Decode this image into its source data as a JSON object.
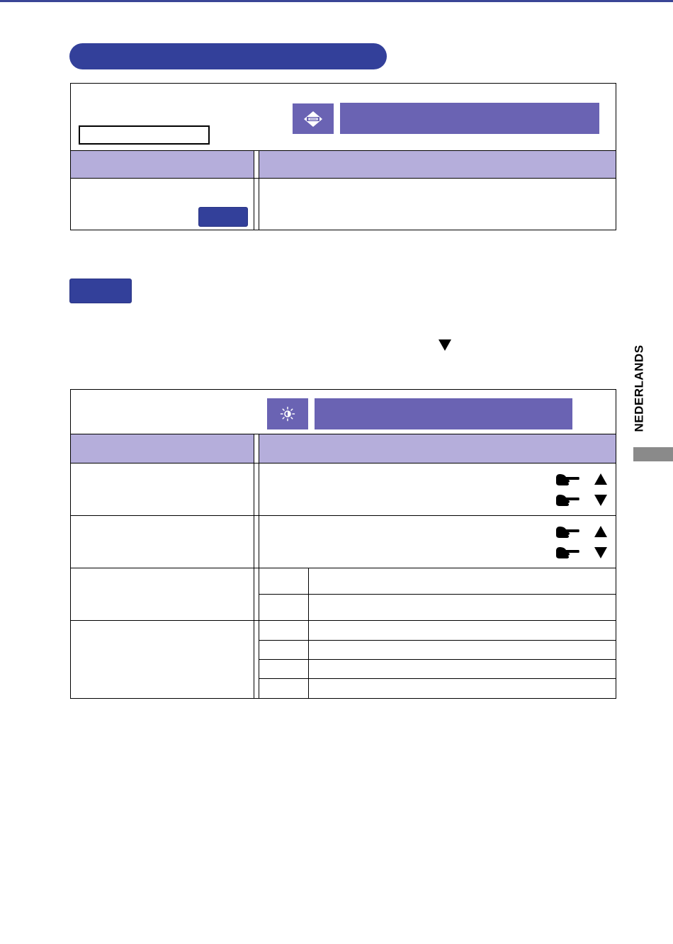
{
  "colors": {
    "header_blue": "#33409a",
    "menu_purple": "#6a63b3",
    "column_lavender": "#b5aedb",
    "side_tab_gray": "#8a8a8a"
  },
  "side_label": "NEDERLANDS",
  "icons": {
    "size_icon": "size-icon",
    "brightness_icon": "brightness-sun-icon",
    "pointer": "pointing-hand-icon",
    "arrow_up": "up-triangle-icon",
    "arrow_down": "down-triangle-icon"
  }
}
